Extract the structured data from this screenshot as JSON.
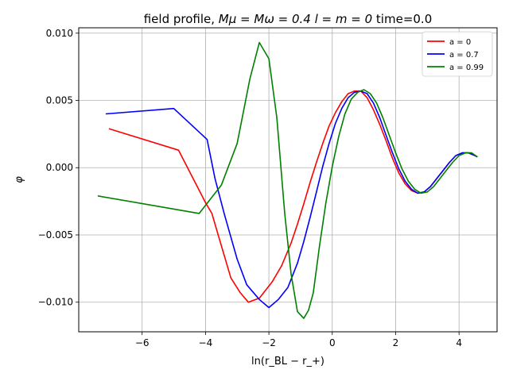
{
  "chart_data": {
    "type": "line",
    "title_prefix": "field profile, ",
    "title_math": "Mμ = Mω = 0.4  l = m = 0",
    "title_suffix": " time=0.0",
    "xlabel": "ln(r_BL − r_+)",
    "ylabel": "φ",
    "xlim": [
      -8.0,
      5.2
    ],
    "ylim": [
      -0.0122,
      0.0104
    ],
    "xticks": [
      -6,
      -4,
      -2,
      0,
      2,
      4
    ],
    "xtick_labels": [
      "−6",
      "−4",
      "−2",
      "0",
      "2",
      "4"
    ],
    "yticks": [
      -0.01,
      -0.005,
      0.0,
      0.005,
      0.01
    ],
    "ytick_labels": [
      "−0.010",
      "−0.005",
      "0.000",
      "0.005",
      "0.010"
    ],
    "grid": true,
    "legend_position": "top-right",
    "series": [
      {
        "name": "a = 0",
        "color": "#ff0000",
        "x": [
          -7.05,
          -4.85,
          -4.0,
          -3.8,
          -3.5,
          -3.2,
          -2.9,
          -2.65,
          -2.3,
          -1.9,
          -1.6,
          -1.3,
          -1.1,
          -0.9,
          -0.7,
          -0.5,
          -0.3,
          -0.1,
          0.1,
          0.3,
          0.5,
          0.7,
          0.9,
          1.1,
          1.3,
          1.5,
          1.7,
          1.9,
          2.1,
          2.3,
          2.5,
          2.7,
          2.9,
          3.1,
          3.3,
          3.5,
          3.7,
          3.9,
          4.1,
          4.3,
          4.5,
          4.58
        ],
        "y": [
          0.0029,
          0.0013,
          -0.0026,
          -0.0034,
          -0.0058,
          -0.0082,
          -0.0093,
          -0.01,
          -0.0097,
          -0.0085,
          -0.0073,
          -0.0056,
          -0.0042,
          -0.0027,
          -0.0011,
          0.0004,
          0.0018,
          0.0031,
          0.0041,
          0.0049,
          0.0055,
          0.0057,
          0.0057,
          0.0052,
          0.0043,
          0.0032,
          0.002,
          0.0007,
          -0.0004,
          -0.0012,
          -0.0017,
          -0.0019,
          -0.0018,
          -0.0014,
          -0.0008,
          -0.0002,
          0.0004,
          0.0009,
          0.0011,
          0.0011,
          0.0009,
          0.0008
        ]
      },
      {
        "name": "a = 0.7",
        "color": "#0000ff",
        "x": [
          -7.15,
          -5.0,
          -3.95,
          -3.7,
          -3.4,
          -3.0,
          -2.7,
          -2.3,
          -2.0,
          -1.7,
          -1.4,
          -1.1,
          -0.9,
          -0.7,
          -0.5,
          -0.3,
          -0.1,
          0.1,
          0.3,
          0.5,
          0.7,
          0.9,
          1.1,
          1.3,
          1.5,
          1.7,
          1.9,
          2.1,
          2.3,
          2.5,
          2.7,
          2.9,
          3.1,
          3.3,
          3.5,
          3.7,
          3.9,
          4.1,
          4.3,
          4.5,
          4.58
        ],
        "y": [
          0.004,
          0.0044,
          0.0021,
          -0.0008,
          -0.0035,
          -0.0068,
          -0.0087,
          -0.0098,
          -0.0104,
          -0.0098,
          -0.0089,
          -0.0071,
          -0.0055,
          -0.0037,
          -0.0018,
          0.0001,
          0.0018,
          0.0033,
          0.0044,
          0.0052,
          0.0056,
          0.0057,
          0.0055,
          0.0048,
          0.0037,
          0.0024,
          0.0011,
          -0.0001,
          -0.001,
          -0.0016,
          -0.0019,
          -0.0018,
          -0.0014,
          -0.0008,
          -0.0002,
          0.0004,
          0.0009,
          0.0011,
          0.0011,
          0.0009,
          0.0008
        ]
      },
      {
        "name": "a = 0.99",
        "color": "#008000",
        "x": [
          -7.4,
          -4.2,
          -3.5,
          -3.0,
          -2.6,
          -2.3,
          -2.0,
          -1.75,
          -1.5,
          -1.3,
          -1.1,
          -0.9,
          -0.75,
          -0.6,
          -0.4,
          -0.2,
          0.0,
          0.2,
          0.4,
          0.6,
          0.8,
          1.0,
          1.2,
          1.4,
          1.6,
          1.8,
          2.0,
          2.2,
          2.4,
          2.6,
          2.8,
          3.0,
          3.2,
          3.4,
          3.6,
          3.8,
          4.0,
          4.2,
          4.4,
          4.58
        ],
        "y": [
          -0.0021,
          -0.0034,
          -0.0013,
          0.0018,
          0.0066,
          0.0093,
          0.0081,
          0.0037,
          -0.0034,
          -0.0079,
          -0.0107,
          -0.0112,
          -0.0106,
          -0.0093,
          -0.0058,
          -0.0026,
          0.0001,
          0.0023,
          0.004,
          0.0051,
          0.0056,
          0.0058,
          0.0055,
          0.0048,
          0.0037,
          0.0024,
          0.0011,
          -0.0001,
          -0.001,
          -0.0016,
          -0.0019,
          -0.0018,
          -0.0014,
          -0.0008,
          -0.0002,
          0.0004,
          0.0009,
          0.0011,
          0.0011,
          0.0008
        ]
      }
    ]
  }
}
